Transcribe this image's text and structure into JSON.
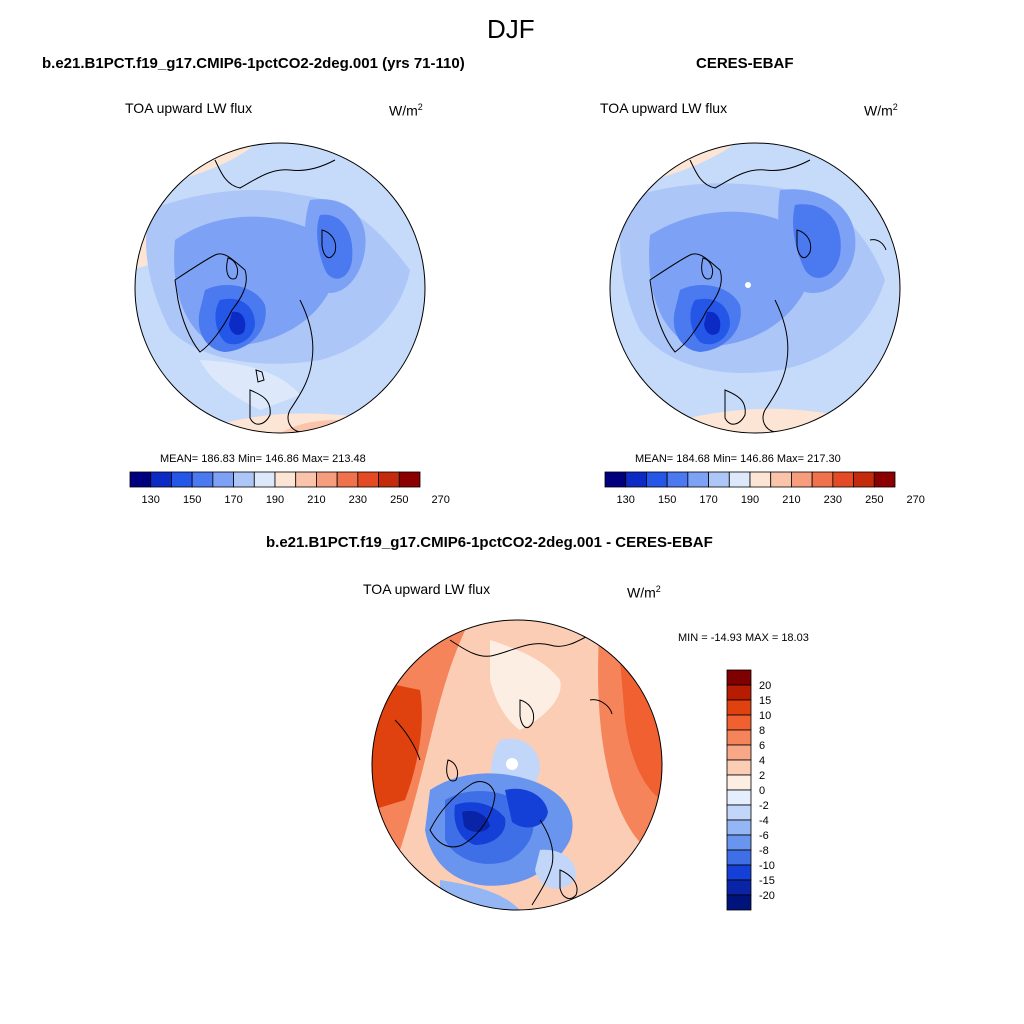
{
  "page": {
    "title": "DJF",
    "season": "DJF"
  },
  "panels": [
    {
      "id": "model",
      "title": "b.e21.B1PCT.f19_g17.CMIP6-1pctCO2-2deg.001 (yrs 71-110)",
      "variable": "TOA upward LW flux",
      "units_base": "W/m",
      "units_exp": "2",
      "mean": "186.83",
      "min": "146.86",
      "max": "213.48",
      "stats_text": "MEAN= 186.83  Min= 146.86  Max= 213.48"
    },
    {
      "id": "obs",
      "title": "CERES-EBAF",
      "variable": "TOA upward LW flux",
      "units_base": "W/m",
      "units_exp": "2",
      "mean": "184.68",
      "min": "146.86",
      "max": "217.30",
      "stats_text": "MEAN= 184.68  Min= 146.86  Max= 217.30"
    },
    {
      "id": "diff",
      "title": "b.e21.B1PCT.f19_g17.CMIP6-1pctCO2-2deg.001 - CERES-EBAF",
      "variable": "TOA upward LW flux",
      "units_base": "W/m",
      "units_exp": "2",
      "min": "-14.93",
      "max": "18.03",
      "stats_text": "MIN = -14.93 MAX =  18.03"
    }
  ],
  "colorbar_abs": {
    "labels": [
      "130",
      "150",
      "170",
      "190",
      "210",
      "230",
      "250",
      "270"
    ],
    "colors": [
      "#00007f",
      "#0b2bc4",
      "#2456e8",
      "#4a79f0",
      "#7da2f5",
      "#adc6f8",
      "#dde9fb",
      "#fde5d6",
      "#f9c4aa",
      "#f59d7c",
      "#f0724c",
      "#e44b24",
      "#c42a0c",
      "#8b0000"
    ]
  },
  "colorbar_diff": {
    "labels": [
      "20",
      "15",
      "10",
      "8",
      "6",
      "4",
      "2",
      "0",
      "-2",
      "-4",
      "-6",
      "-8",
      "-10",
      "-15",
      "-20"
    ],
    "colors": [
      "#7f0000",
      "#b81c00",
      "#e0420f",
      "#f06030",
      "#f5845a",
      "#f8a886",
      "#fbcdb5",
      "#fdeee4",
      "#e5eefc",
      "#c2d6f9",
      "#94b6f4",
      "#6a95ee",
      "#3f6fe6",
      "#1540d8",
      "#0a24a8",
      "#00137a"
    ]
  }
}
